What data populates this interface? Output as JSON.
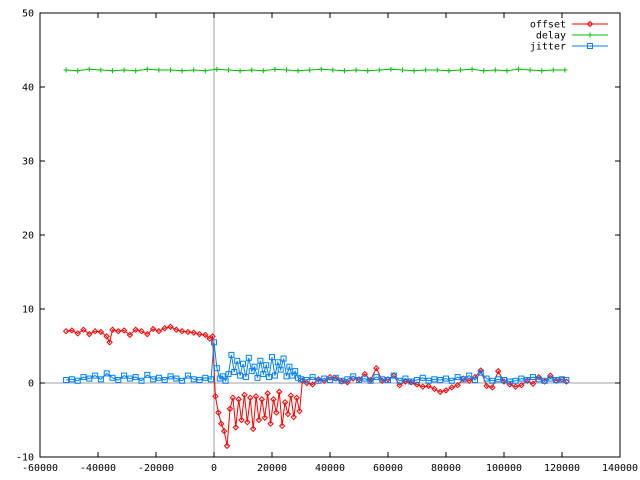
{
  "chart_data": {
    "type": "line",
    "title": "",
    "xlabel": "",
    "ylabel": "",
    "xlim": [
      -60000,
      140000
    ],
    "ylim": [
      -10,
      50
    ],
    "x_ticks": [
      "-60000",
      "-40000",
      "-20000",
      "0",
      "20000",
      "40000",
      "60000",
      "80000",
      "100000",
      "120000",
      "140000"
    ],
    "y_ticks": [
      "-10",
      "0",
      "10",
      "20",
      "30",
      "40",
      "50"
    ],
    "grid": false,
    "zero_axes": true,
    "legend_position": "top-right",
    "series": [
      {
        "name": "offset",
        "color": "#ff0000",
        "marker": "diamond",
        "x": [
          -51000,
          -49000,
          -47000,
          -45000,
          -43000,
          -41000,
          -39000,
          -37000,
          -36000,
          -35000,
          -33000,
          -31000,
          -29000,
          -27000,
          -25000,
          -23000,
          -21000,
          -19000,
          -17000,
          -15000,
          -13000,
          -11000,
          -9000,
          -7000,
          -5000,
          -3000,
          -1500,
          -500,
          500,
          1500,
          2500,
          3500,
          4500,
          5500,
          6500,
          7500,
          8500,
          9500,
          10500,
          11500,
          12500,
          13500,
          14500,
          15500,
          16500,
          17500,
          18500,
          19500,
          20500,
          21500,
          22500,
          23500,
          24500,
          25500,
          26500,
          27500,
          28500,
          29500,
          30500,
          32000,
          34000,
          36000,
          38000,
          40000,
          42000,
          44000,
          46000,
          48000,
          50000,
          52000,
          54000,
          56000,
          58000,
          60000,
          62000,
          64000,
          66000,
          68000,
          70000,
          72000,
          74000,
          76000,
          78000,
          80000,
          82000,
          84000,
          86000,
          88000,
          90000,
          92000,
          94000,
          96000,
          98000,
          100000,
          102000,
          104000,
          106000,
          108000,
          110000,
          112000,
          114000,
          116000,
          118000,
          120000,
          121500
        ],
        "values": [
          7.0,
          7.1,
          6.7,
          7.2,
          6.6,
          7.0,
          6.9,
          6.3,
          5.5,
          7.2,
          7.0,
          7.1,
          6.5,
          7.2,
          7.0,
          6.6,
          7.3,
          7.0,
          7.4,
          7.6,
          7.2,
          7.0,
          6.9,
          6.8,
          6.6,
          6.5,
          6.0,
          6.3,
          -1.8,
          -4.0,
          -5.5,
          -6.5,
          -8.5,
          -3.5,
          -2.0,
          -6.0,
          -2.2,
          -5.0,
          -1.6,
          -5.3,
          -2.0,
          -6.2,
          -1.8,
          -5.0,
          -2.2,
          -4.7,
          -1.4,
          -5.5,
          -2.2,
          -4.0,
          -1.2,
          -5.8,
          -2.6,
          -4.2,
          -1.7,
          -4.6,
          -2.0,
          -3.8,
          0.3,
          0.0,
          -0.2,
          0.5,
          0.3,
          0.8,
          0.6,
          0.2,
          0.1,
          0.6,
          0.5,
          1.2,
          0.4,
          2.0,
          0.3,
          0.5,
          1.0,
          -0.3,
          0.2,
          0.1,
          -0.2,
          -0.5,
          -0.4,
          -0.8,
          -1.2,
          -1.0,
          -0.6,
          -0.3,
          0.6,
          0.3,
          0.8,
          1.7,
          -0.4,
          -0.6,
          1.6,
          0.2,
          -0.2,
          -0.5,
          -0.3,
          0.3,
          -0.1,
          0.8,
          0.2,
          1.0,
          0.3,
          0.5,
          0.2
        ]
      },
      {
        "name": "delay",
        "color": "#00c000",
        "marker": "plus",
        "x": [
          -51000,
          -47000,
          -43000,
          -39000,
          -35000,
          -31000,
          -27000,
          -23000,
          -19000,
          -15000,
          -11000,
          -7000,
          -3000,
          1000,
          5000,
          9000,
          13000,
          17000,
          21000,
          25000,
          29000,
          33000,
          37000,
          41000,
          45000,
          49000,
          53000,
          57000,
          61000,
          65000,
          69000,
          73000,
          77000,
          81000,
          85000,
          89000,
          93000,
          97000,
          101000,
          105000,
          109000,
          113000,
          117000,
          121000
        ],
        "values": [
          42.3,
          42.2,
          42.4,
          42.3,
          42.2,
          42.3,
          42.2,
          42.4,
          42.3,
          42.3,
          42.2,
          42.3,
          42.2,
          42.4,
          42.3,
          42.2,
          42.3,
          42.2,
          42.4,
          42.3,
          42.2,
          42.3,
          42.4,
          42.3,
          42.2,
          42.3,
          42.2,
          42.3,
          42.4,
          42.3,
          42.2,
          42.3,
          42.3,
          42.2,
          42.3,
          42.4,
          42.2,
          42.3,
          42.2,
          42.4,
          42.3,
          42.2,
          42.3,
          42.3
        ]
      },
      {
        "name": "jitter",
        "color": "#0080ff",
        "marker": "square",
        "x": [
          -51000,
          -49000,
          -47000,
          -45000,
          -43000,
          -41000,
          -39000,
          -37000,
          -35000,
          -33000,
          -31000,
          -29000,
          -27000,
          -25000,
          -23000,
          -21000,
          -19000,
          -17000,
          -15000,
          -13000,
          -11000,
          -9000,
          -7000,
          -5000,
          -3000,
          -1000,
          0,
          1000,
          2000,
          3000,
          4000,
          5000,
          6000,
          7000,
          8000,
          9000,
          10000,
          11000,
          12000,
          13000,
          14000,
          15000,
          16000,
          17000,
          18000,
          19000,
          20000,
          21000,
          22000,
          23000,
          24000,
          25000,
          26000,
          27000,
          28000,
          29000,
          30000,
          32000,
          34000,
          36000,
          38000,
          40000,
          42000,
          44000,
          46000,
          48000,
          50000,
          52000,
          54000,
          56000,
          58000,
          60000,
          62000,
          64000,
          66000,
          68000,
          70000,
          72000,
          74000,
          76000,
          78000,
          80000,
          82000,
          84000,
          86000,
          88000,
          90000,
          92000,
          94000,
          96000,
          98000,
          100000,
          102000,
          104000,
          106000,
          108000,
          110000,
          112000,
          114000,
          116000,
          118000,
          120000,
          121500
        ],
        "values": [
          0.4,
          0.5,
          0.3,
          0.8,
          0.6,
          1.0,
          0.5,
          1.3,
          0.7,
          0.4,
          1.0,
          0.6,
          0.8,
          0.3,
          1.1,
          0.5,
          0.7,
          0.4,
          0.9,
          0.6,
          0.3,
          1.0,
          0.5,
          0.4,
          0.7,
          0.5,
          5.5,
          2.0,
          0.6,
          0.9,
          0.3,
          1.2,
          3.8,
          1.5,
          3.0,
          1.0,
          2.6,
          0.8,
          3.4,
          1.6,
          2.2,
          0.7,
          3.0,
          1.2,
          2.4,
          0.8,
          3.5,
          1.0,
          2.8,
          1.8,
          3.3,
          0.9,
          2.2,
          1.0,
          1.6,
          0.7,
          0.5,
          0.4,
          0.8,
          0.3,
          0.6,
          0.4,
          0.7,
          0.3,
          0.5,
          0.9,
          0.4,
          0.6,
          0.3,
          0.8,
          0.5,
          0.4,
          1.0,
          0.3,
          0.6,
          0.2,
          0.4,
          0.7,
          0.3,
          0.5,
          0.4,
          0.6,
          0.3,
          0.8,
          0.5,
          1.0,
          0.4,
          1.4,
          0.6,
          0.3,
          0.5,
          0.4,
          0.2,
          0.3,
          0.6,
          0.4,
          0.8,
          0.5,
          0.3,
          0.6,
          0.4,
          0.5,
          0.4
        ]
      }
    ]
  }
}
